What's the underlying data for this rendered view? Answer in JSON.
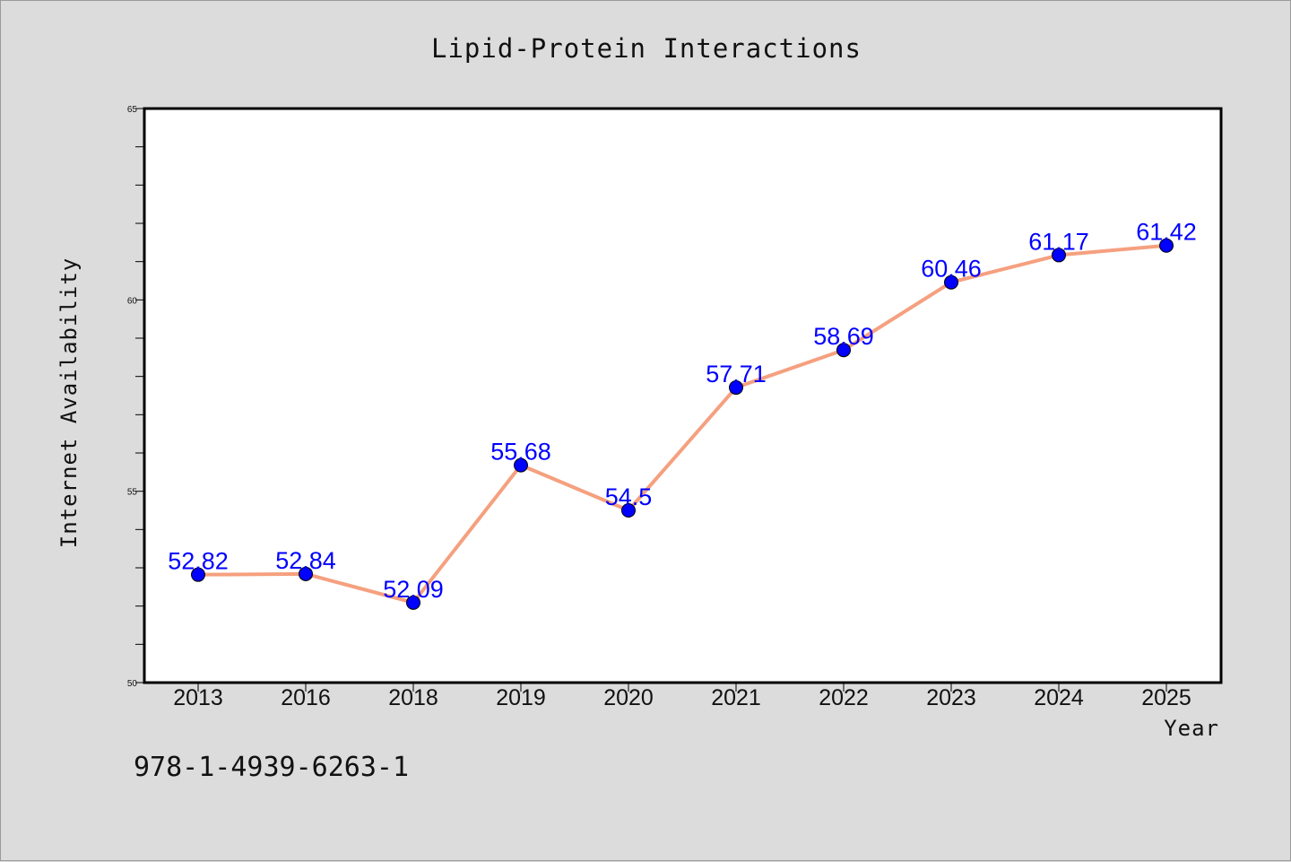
{
  "chart_data": {
    "type": "line",
    "title": "Lipid-Protein Interactions",
    "xlabel": "Year",
    "ylabel": "Internet Availability",
    "categories": [
      "2013",
      "2016",
      "2018",
      "2019",
      "2020",
      "2021",
      "2022",
      "2023",
      "2024",
      "2025"
    ],
    "series": [
      {
        "values": [
          52.82,
          52.84,
          52.09,
          55.68,
          54.5,
          57.71,
          58.69,
          60.46,
          61.17,
          61.42
        ],
        "data_labels": [
          "52.82",
          "52.84",
          "52.09",
          "55.68",
          "54.5",
          "57.71",
          "58.69",
          "60.46",
          "61.17",
          "61.42"
        ]
      }
    ],
    "ylim": [
      50,
      65
    ],
    "y_ticks": [
      "50",
      "55",
      "60",
      "65"
    ],
    "y_minor_step": 1,
    "grid": false,
    "legend": "none",
    "line_color": "#f5a07f",
    "marker_color": "#0000ff",
    "label_color": "#0000ff"
  },
  "footnote": "978-1-4939-6263-1"
}
